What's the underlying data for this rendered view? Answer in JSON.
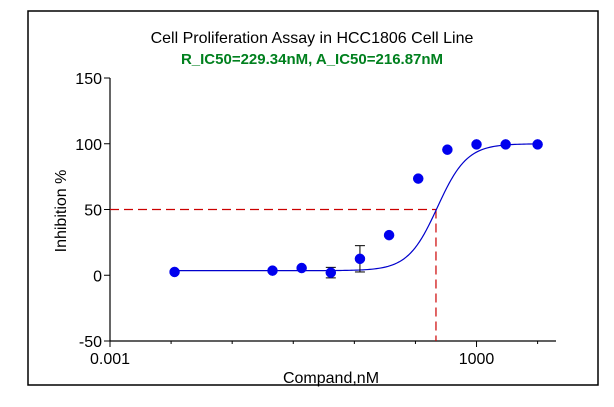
{
  "chart_data": {
    "type": "scatter",
    "title": "Cell Proliferation Assay in HCC1806 Cell Line",
    "subtitle": "R_IC50=229.34nM,  A_IC50=216.87nM",
    "xlabel": "Compand,nM",
    "ylabel": "Inhibition %",
    "x_scale": "log",
    "xlim": [
      0.001,
      20000
    ],
    "ylim": [
      -50,
      150
    ],
    "x_ticks": [
      0.001,
      1000
    ],
    "x_tick_labels": [
      "0.001",
      "1000"
    ],
    "y_ticks": [
      -50,
      0,
      50,
      100,
      150
    ],
    "y_tick_labels": [
      "-50",
      "0",
      "50",
      "100",
      "150"
    ],
    "grid": false,
    "legend": "none",
    "colors": {
      "points": "#0000ee",
      "curve": "#0000cc",
      "guide": "#cc0000",
      "subtitle": "#00801e",
      "axis": "#000000"
    },
    "series": [
      {
        "x": [
          0.0114,
          0.4572,
          1.3717,
          4.1152,
          12.346,
          37.037,
          111.11,
          333.33,
          1000,
          3000,
          10000
        ],
        "y": [
          2.5,
          3.5,
          5.5,
          2,
          12.5,
          30.5,
          73.5,
          95.5,
          99.5,
          99.5,
          99.5
        ],
        "err": [
          0,
          0,
          0,
          4,
          10,
          0,
          0,
          0,
          0,
          0,
          0
        ]
      }
    ],
    "fit_curve": {
      "bottom": 3.5,
      "top": 100,
      "ic50": 229.34,
      "hill": 1.8
    },
    "ic50_guide": {
      "x": 216.87,
      "y": 50
    }
  }
}
